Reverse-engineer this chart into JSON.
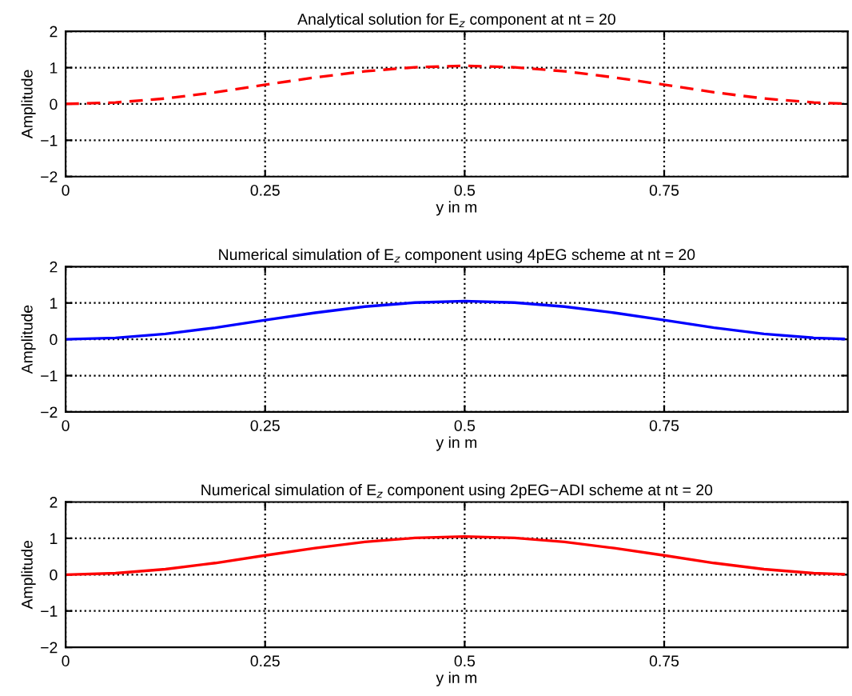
{
  "chart_data": [
    {
      "type": "line",
      "title": "Analytical solution for E$_{z}$ component at nt = 20",
      "xlabel": "y in m",
      "ylabel": "Amplitude",
      "xlim": [
        0,
        0.98
      ],
      "ylim": [
        -2,
        2
      ],
      "xticks": [
        0,
        0.25,
        0.5,
        0.75
      ],
      "yticks": [
        -2,
        -1,
        0,
        1,
        2
      ],
      "grid": true,
      "line_style": "dashed",
      "x": [
        0,
        0.0625,
        0.125,
        0.1875,
        0.25,
        0.3125,
        0.375,
        0.4375,
        0.5,
        0.5625,
        0.625,
        0.6875,
        0.75,
        0.8125,
        0.875,
        0.9375,
        0.975
      ],
      "series": [
        {
          "color": "#ff0000",
          "values": [
            0,
            0.04,
            0.15,
            0.32,
            0.53,
            0.73,
            0.9,
            1.01,
            1.05,
            1.01,
            0.9,
            0.73,
            0.53,
            0.32,
            0.15,
            0.04,
            0.01
          ]
        }
      ]
    },
    {
      "type": "line",
      "title": "Numerical simulation of E$_{z}$ component using 4pEG scheme at nt = 20",
      "xlabel": "y in m",
      "ylabel": "Amplitude",
      "xlim": [
        0,
        0.98
      ],
      "ylim": [
        -2,
        2
      ],
      "xticks": [
        0,
        0.25,
        0.5,
        0.75
      ],
      "yticks": [
        -2,
        -1,
        0,
        1,
        2
      ],
      "grid": true,
      "line_style": "solid",
      "x": [
        0,
        0.0625,
        0.125,
        0.1875,
        0.25,
        0.3125,
        0.375,
        0.4375,
        0.5,
        0.5625,
        0.625,
        0.6875,
        0.75,
        0.8125,
        0.875,
        0.9375,
        0.975
      ],
      "series": [
        {
          "color": "#0000ff",
          "values": [
            0,
            0.04,
            0.15,
            0.32,
            0.53,
            0.73,
            0.9,
            1.01,
            1.05,
            1.01,
            0.9,
            0.73,
            0.53,
            0.32,
            0.15,
            0.04,
            0.01
          ]
        }
      ]
    },
    {
      "type": "line",
      "title": "Numerical simulation of E$_{z}$ component using 2pEG−ADI scheme at nt = 20",
      "xlabel": "y in m",
      "ylabel": "Amplitude",
      "xlim": [
        0,
        0.98
      ],
      "ylim": [
        -2,
        2
      ],
      "xticks": [
        0,
        0.25,
        0.5,
        0.75
      ],
      "yticks": [
        -2,
        -1,
        0,
        1,
        2
      ],
      "grid": true,
      "line_style": "solid",
      "x": [
        0,
        0.0625,
        0.125,
        0.1875,
        0.25,
        0.3125,
        0.375,
        0.4375,
        0.5,
        0.5625,
        0.625,
        0.6875,
        0.75,
        0.8125,
        0.875,
        0.9375,
        0.975
      ],
      "series": [
        {
          "color": "#ff0000",
          "values": [
            0,
            0.04,
            0.15,
            0.32,
            0.53,
            0.73,
            0.9,
            1.01,
            1.05,
            1.01,
            0.9,
            0.73,
            0.53,
            0.32,
            0.15,
            0.04,
            0.01
          ]
        }
      ]
    }
  ]
}
